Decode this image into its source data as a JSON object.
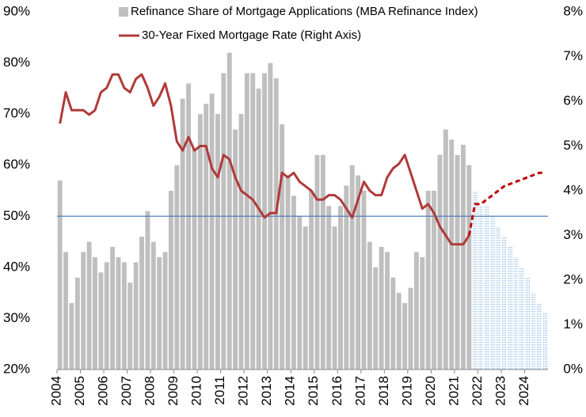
{
  "chart_data": {
    "type": "combo",
    "x": [
      2004,
      2004.25,
      2004.5,
      2004.75,
      2005,
      2005.25,
      2005.5,
      2005.75,
      2006,
      2006.25,
      2006.5,
      2006.75,
      2007,
      2007.25,
      2007.5,
      2007.75,
      2008,
      2008.25,
      2008.5,
      2008.75,
      2009,
      2009.25,
      2009.5,
      2009.75,
      2010,
      2010.25,
      2010.5,
      2010.75,
      2011,
      2011.25,
      2011.5,
      2011.75,
      2012,
      2012.25,
      2012.5,
      2012.75,
      2013,
      2013.25,
      2013.5,
      2013.75,
      2014,
      2014.25,
      2014.5,
      2014.75,
      2015,
      2015.25,
      2015.5,
      2015.75,
      2016,
      2016.25,
      2016.5,
      2016.75,
      2017,
      2017.25,
      2017.5,
      2017.75,
      2018,
      2018.25,
      2018.5,
      2018.75,
      2019,
      2019.25,
      2019.5,
      2019.75,
      2020,
      2020.25,
      2020.5,
      2020.75,
      2021,
      2021.25,
      2021.5,
      2021.75,
      2022,
      2022.25,
      2022.5,
      2022.75,
      2023,
      2023.25,
      2023.5,
      2023.75,
      2024,
      2024.25,
      2024.5,
      2024.75
    ],
    "series": [
      {
        "name": "Refinance Share of Mortgage Applications (MBA Refinance Index)",
        "type": "bar",
        "color": "#bfbfbf",
        "values": [
          57,
          43,
          33,
          38,
          43,
          45,
          42,
          39,
          41,
          44,
          42,
          41,
          37,
          41,
          46,
          51,
          45,
          42,
          43,
          55,
          60,
          73,
          76,
          63,
          70,
          72,
          74,
          70,
          78,
          82,
          67,
          70,
          78,
          78,
          75,
          78,
          80,
          77,
          68,
          58,
          54,
          50,
          48,
          55,
          62,
          62,
          52,
          48,
          52,
          56,
          60,
          58,
          55,
          45,
          40,
          44,
          43,
          38,
          35,
          33,
          36,
          43,
          42,
          55,
          55,
          62,
          67,
          65,
          62,
          64,
          60,
          null,
          null,
          null,
          null,
          null,
          null,
          null,
          null,
          null,
          null,
          null,
          null,
          null
        ]
      },
      {
        "type": "bar",
        "color": "#9dc3e6",
        "pattern": "dotted",
        "values": [
          null,
          null,
          null,
          null,
          null,
          null,
          null,
          null,
          null,
          null,
          null,
          null,
          null,
          null,
          null,
          null,
          null,
          null,
          null,
          null,
          null,
          null,
          null,
          null,
          null,
          null,
          null,
          null,
          null,
          null,
          null,
          null,
          null,
          null,
          null,
          null,
          null,
          null,
          null,
          null,
          null,
          null,
          null,
          null,
          null,
          null,
          null,
          null,
          null,
          null,
          null,
          null,
          null,
          null,
          null,
          null,
          null,
          null,
          null,
          null,
          null,
          null,
          null,
          null,
          null,
          null,
          null,
          null,
          null,
          null,
          null,
          55,
          52,
          52,
          50,
          48,
          46,
          44,
          42,
          40,
          38,
          35,
          33,
          31
        ]
      },
      {
        "name": "30-Year Fixed Mortgage Rate (Right Axis)",
        "type": "line",
        "axis": "y2",
        "color": "#b03a3a",
        "values": [
          5.5,
          6.2,
          5.8,
          5.8,
          5.8,
          5.7,
          5.8,
          6.2,
          6.3,
          6.6,
          6.6,
          6.3,
          6.2,
          6.5,
          6.6,
          6.3,
          5.9,
          6.1,
          6.4,
          5.9,
          5.1,
          4.9,
          5.2,
          4.9,
          5.0,
          5.0,
          4.5,
          4.3,
          4.8,
          4.7,
          4.3,
          4.0,
          3.9,
          3.8,
          3.6,
          3.4,
          3.5,
          3.5,
          4.4,
          4.3,
          4.4,
          4.2,
          4.1,
          4.0,
          3.8,
          3.8,
          3.9,
          3.9,
          3.8,
          3.6,
          3.4,
          3.8,
          4.2,
          4.0,
          3.9,
          3.9,
          4.3,
          4.5,
          4.6,
          4.8,
          4.4,
          4.0,
          3.6,
          3.7,
          3.5,
          3.2,
          3.0,
          2.8,
          2.8,
          2.8,
          3.0,
          null,
          null,
          null,
          null,
          null,
          null,
          null,
          null,
          null,
          null,
          null,
          null,
          null
        ]
      },
      {
        "type": "line",
        "axis": "y2",
        "color": "#c00000",
        "dashed": true,
        "values": [
          null,
          null,
          null,
          null,
          null,
          null,
          null,
          null,
          null,
          null,
          null,
          null,
          null,
          null,
          null,
          null,
          null,
          null,
          null,
          null,
          null,
          null,
          null,
          null,
          null,
          null,
          null,
          null,
          null,
          null,
          null,
          null,
          null,
          null,
          null,
          null,
          null,
          null,
          null,
          null,
          null,
          null,
          null,
          null,
          null,
          null,
          null,
          null,
          null,
          null,
          null,
          null,
          null,
          null,
          null,
          null,
          null,
          null,
          null,
          null,
          null,
          null,
          null,
          null,
          null,
          null,
          null,
          null,
          null,
          null,
          3.0,
          3.7,
          3.7,
          3.8,
          3.9,
          4.0,
          4.1,
          4.15,
          4.2,
          4.25,
          4.3,
          4.35,
          4.4,
          4.4
        ]
      }
    ],
    "reference_line": {
      "value": 50,
      "color": "#4f81bd"
    },
    "xlim": [
      2004,
      2025
    ],
    "xticks": [
      2004,
      2005,
      2006,
      2007,
      2008,
      2009,
      2010,
      2011,
      2012,
      2013,
      2014,
      2015,
      2016,
      2017,
      2018,
      2019,
      2020,
      2021,
      2022,
      2023,
      2024
    ],
    "ylim": [
      20,
      90
    ],
    "yticks": [
      {
        "value": 20,
        "label": "20%"
      },
      {
        "value": 30,
        "label": "30%"
      },
      {
        "value": 40,
        "label": "40%"
      },
      {
        "value": 50,
        "label": "50%"
      },
      {
        "value": 60,
        "label": "60%"
      },
      {
        "value": 70,
        "label": "70%"
      },
      {
        "value": 80,
        "label": "80%"
      },
      {
        "value": 90,
        "label": "90%"
      }
    ],
    "y2lim": [
      0,
      8
    ],
    "y2ticks": [
      {
        "value": 0,
        "label": "0%"
      },
      {
        "value": 1,
        "label": "1%"
      },
      {
        "value": 2,
        "label": "2%"
      },
      {
        "value": 3,
        "label": "3%"
      },
      {
        "value": 4,
        "label": "4%"
      },
      {
        "value": 5,
        "label": "5%"
      },
      {
        "value": 6,
        "label": "6%"
      },
      {
        "value": 7,
        "label": "7%"
      },
      {
        "value": 8,
        "label": "8%"
      }
    ],
    "legend": "top"
  }
}
